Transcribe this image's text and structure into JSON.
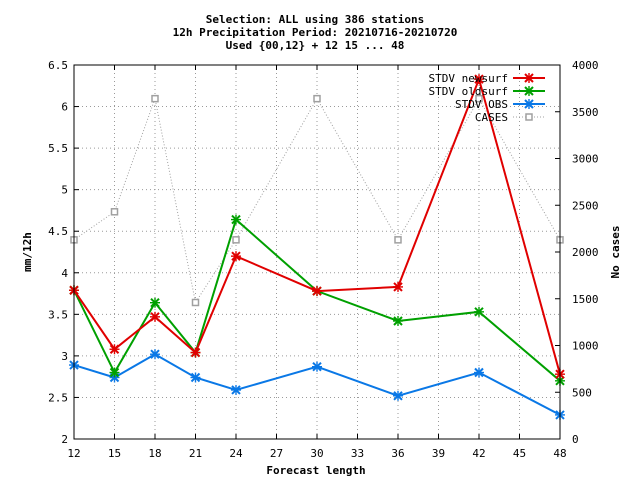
{
  "chart_data": {
    "type": "line",
    "title_lines": [
      "Selection: ALL using   386 stations",
      "12h Precipitation   Period: 20210716-20210720",
      "Used {00,12} + 12 15 ... 48"
    ],
    "xlabel": "Forecast length",
    "ylabel": "mm/12h",
    "y2label": "No cases",
    "xlim": [
      12,
      48
    ],
    "ylim": [
      2,
      6.5
    ],
    "y2lim": [
      0,
      4000
    ],
    "xticks": [
      12,
      15,
      18,
      21,
      24,
      27,
      30,
      33,
      36,
      39,
      42,
      45,
      48
    ],
    "yticks": [
      2,
      2.5,
      3,
      3.5,
      4,
      4.5,
      5,
      5.5,
      6,
      6.5
    ],
    "y2ticks": [
      0,
      500,
      1000,
      1500,
      2000,
      2500,
      3000,
      3500,
      4000
    ],
    "x": [
      12,
      15,
      18,
      21,
      24,
      30,
      36,
      42,
      48
    ],
    "grid": true,
    "legend_position": "top-right",
    "series": [
      {
        "name": "STDV newsurf",
        "color": "#e00000",
        "marker": "x",
        "axis": "left",
        "values": [
          3.79,
          3.08,
          3.47,
          3.04,
          4.2,
          3.78,
          3.83,
          6.33,
          2.78
        ]
      },
      {
        "name": "STDV oldsurf",
        "color": "#00a000",
        "marker": "x",
        "axis": "left",
        "values": [
          3.79,
          2.8,
          3.64,
          3.04,
          4.64,
          3.78,
          3.42,
          3.53,
          2.7
        ]
      },
      {
        "name": "STDV OBS",
        "color": "#0a78e6",
        "marker": "x",
        "axis": "left",
        "values": [
          2.89,
          2.74,
          3.02,
          2.74,
          2.59,
          2.87,
          2.52,
          2.8,
          2.29
        ]
      },
      {
        "name": "CASES",
        "color": "#a0a0a0",
        "marker": "square",
        "dashed": true,
        "axis": "right",
        "values": [
          2130,
          2430,
          3640,
          1460,
          2130,
          3640,
          2130,
          3640,
          2130
        ]
      }
    ]
  }
}
